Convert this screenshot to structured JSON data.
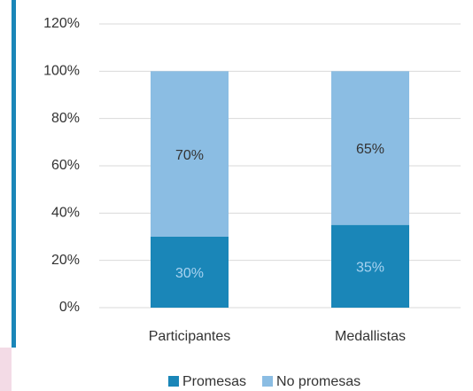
{
  "chart_data": {
    "type": "stacked_bar",
    "categories": [
      "Participantes",
      "Medallistas"
    ],
    "series": [
      {
        "name": "Promesas",
        "color": "#1a86b8",
        "values": [
          30,
          35
        ],
        "value_labels": [
          "30%",
          "35%"
        ]
      },
      {
        "name": "No promesas",
        "color": "#8bbde3",
        "values": [
          70,
          65
        ],
        "value_labels": [
          "70%",
          "65%"
        ]
      }
    ],
    "ylim": [
      0,
      120
    ],
    "yticks": [
      {
        "value": 0,
        "label": "0%"
      },
      {
        "value": 20,
        "label": "20%"
      },
      {
        "value": 40,
        "label": "40%"
      },
      {
        "value": 60,
        "label": "60%"
      },
      {
        "value": 80,
        "label": "80%"
      },
      {
        "value": 100,
        "label": "100%"
      },
      {
        "value": 120,
        "label": "120%"
      }
    ],
    "grid": true,
    "legend": "bottom"
  }
}
